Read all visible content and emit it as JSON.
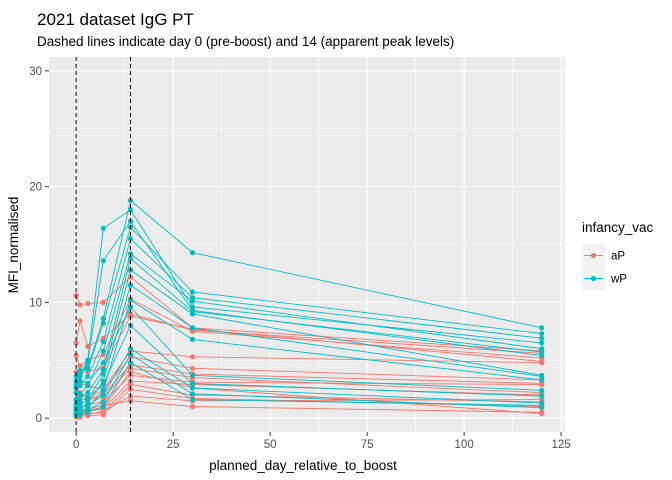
{
  "chart_data": {
    "type": "line",
    "title": "2021 dataset IgG PT",
    "subtitle": "Dashed lines indicate day 0 (pre-boost) and 14 (apparent peak levels)",
    "xlabel": "planned_day_relative_to_boost",
    "ylabel": "MFI_normalised",
    "xlim": [
      -7,
      126
    ],
    "ylim": [
      -1.2,
      31.2
    ],
    "x_ticks": [
      0,
      25,
      50,
      75,
      100,
      125
    ],
    "x_tick_labels": [
      "0",
      "25",
      "50",
      "75",
      "100",
      "125"
    ],
    "y_ticks": [
      0,
      10,
      20,
      30
    ],
    "y_tick_labels": [
      "0",
      "10",
      "20",
      "30"
    ],
    "vlines": [
      0,
      14
    ],
    "grid": true,
    "legend_title": "infancy_vac",
    "legend_position": "right",
    "colors": {
      "aP": "#F8766D",
      "wP": "#00BFC4"
    },
    "series": [
      {
        "name": "aP",
        "subjects": [
          [
            [
              0,
              10.6
            ],
            [
              1,
              9.8
            ],
            [
              3,
              9.9
            ],
            [
              7,
              10.0
            ],
            [
              14,
              12.2
            ],
            [
              30,
              7.8
            ],
            [
              120,
              5.8
            ]
          ],
          [
            [
              0,
              6.5
            ],
            [
              1,
              8.4
            ],
            [
              3,
              6.2
            ],
            [
              7,
              6.9
            ],
            [
              14,
              9.0
            ],
            [
              30,
              7.6
            ],
            [
              120,
              5.6
            ]
          ],
          [
            [
              0,
              5.4
            ],
            [
              1,
              4.5
            ],
            [
              3,
              5.0
            ],
            [
              7,
              5.5
            ],
            [
              14,
              10.3
            ],
            [
              30,
              7.5
            ],
            [
              120,
              5.2
            ]
          ],
          [
            [
              0,
              4.0
            ],
            [
              1,
              3.9
            ],
            [
              3,
              4.0
            ],
            [
              7,
              4.3
            ],
            [
              14,
              8.8
            ],
            [
              30,
              7.7
            ],
            [
              120,
              4.9
            ]
          ],
          [
            [
              0,
              3.2
            ],
            [
              1,
              3.0
            ],
            [
              3,
              2.8
            ],
            [
              7,
              2.5
            ],
            [
              14,
              5.8
            ],
            [
              30,
              5.3
            ],
            [
              120,
              4.8
            ]
          ],
          [
            [
              0,
              2.6
            ],
            [
              1,
              2.2
            ],
            [
              3,
              1.8
            ],
            [
              7,
              2.4
            ],
            [
              14,
              5.3
            ],
            [
              30,
              4.3
            ],
            [
              120,
              3.3
            ]
          ],
          [
            [
              0,
              2.2
            ],
            [
              1,
              2.0
            ],
            [
              3,
              1.7
            ],
            [
              7,
              2.0
            ],
            [
              14,
              4.6
            ],
            [
              30,
              3.8
            ],
            [
              120,
              3.0
            ]
          ],
          [
            [
              0,
              1.5
            ],
            [
              1,
              1.6
            ],
            [
              3,
              1.6
            ],
            [
              7,
              1.8
            ],
            [
              14,
              4.3
            ],
            [
              30,
              3.5
            ],
            [
              120,
              2.2
            ]
          ],
          [
            [
              0,
              0.8
            ],
            [
              1,
              0.9
            ],
            [
              3,
              1.2
            ],
            [
              7,
              1.4
            ],
            [
              14,
              3.7
            ],
            [
              30,
              3.1
            ],
            [
              120,
              2.9
            ]
          ],
          [
            [
              0,
              0.5
            ],
            [
              1,
              0.4
            ],
            [
              3,
              0.6
            ],
            [
              7,
              0.8
            ],
            [
              14,
              3.2
            ],
            [
              30,
              2.9
            ],
            [
              120,
              2.0
            ]
          ],
          [
            [
              0,
              0.2
            ],
            [
              1,
              0.3
            ],
            [
              3,
              0.4
            ],
            [
              7,
              0.5
            ],
            [
              14,
              2.9
            ],
            [
              30,
              2.0
            ],
            [
              120,
              1.4
            ]
          ],
          [
            [
              0,
              0.1
            ],
            [
              1,
              0.2
            ],
            [
              3,
              0.2
            ],
            [
              7,
              0.3
            ],
            [
              14,
              2.5
            ],
            [
              30,
              1.7
            ],
            [
              120,
              1.0
            ]
          ],
          [
            [
              0,
              0.3
            ],
            [
              1,
              0.1
            ],
            [
              3,
              0.3
            ],
            [
              7,
              0.6
            ],
            [
              14,
              1.9
            ],
            [
              30,
              1.5
            ],
            [
              120,
              1.6
            ]
          ],
          [
            [
              0,
              0.6
            ],
            [
              1,
              0.5
            ],
            [
              3,
              0.8
            ],
            [
              7,
              1.1
            ],
            [
              14,
              1.5
            ],
            [
              30,
              1.0
            ],
            [
              120,
              0.5
            ]
          ],
          [
            [
              0,
              0.4
            ],
            [
              1,
              0.6
            ],
            [
              3,
              0.7
            ],
            [
              7,
              0.9
            ],
            [
              14,
              4.0
            ],
            [
              30,
              2.6
            ],
            [
              120,
              0.4
            ]
          ]
        ]
      },
      {
        "name": "wP",
        "subjects": [
          [
            [
              0,
              2.6
            ],
            [
              1,
              3.8
            ],
            [
              3,
              5.0
            ],
            [
              7,
              16.4
            ],
            [
              14,
              18.0
            ],
            [
              30,
              9.6
            ],
            [
              120,
              6.5
            ]
          ],
          [
            [
              0,
              2.8
            ],
            [
              1,
              3.6
            ],
            [
              3,
              4.8
            ],
            [
              7,
              13.6
            ],
            [
              14,
              17.0
            ],
            [
              30,
              9.3
            ],
            [
              120,
              5.4
            ]
          ],
          [
            [
              0,
              3.2
            ],
            [
              1,
              4.0
            ],
            [
              3,
              4.4
            ],
            [
              7,
              8.6
            ],
            [
              14,
              18.8
            ],
            [
              30,
              14.3
            ],
            [
              120,
              7.8
            ]
          ],
          [
            [
              0,
              3.6
            ],
            [
              1,
              4.1
            ],
            [
              3,
              4.2
            ],
            [
              7,
              8.2
            ],
            [
              14,
              16.5
            ],
            [
              30,
              10.9
            ],
            [
              120,
              7.3
            ]
          ],
          [
            [
              0,
              2.2
            ],
            [
              1,
              2.8
            ],
            [
              3,
              3.6
            ],
            [
              7,
              6.6
            ],
            [
              14,
              15.5
            ],
            [
              30,
              10.4
            ],
            [
              120,
              6.9
            ]
          ],
          [
            [
              0,
              1.6
            ],
            [
              1,
              2.1
            ],
            [
              3,
              2.8
            ],
            [
              7,
              5.8
            ],
            [
              14,
              14.2
            ],
            [
              30,
              10.1
            ],
            [
              120,
              6.0
            ]
          ],
          [
            [
              0,
              1.2
            ],
            [
              1,
              1.8
            ],
            [
              3,
              2.2
            ],
            [
              7,
              4.2
            ],
            [
              14,
              13.8
            ],
            [
              30,
              9.2
            ],
            [
              120,
              5.7
            ]
          ],
          [
            [
              0,
              0.9
            ],
            [
              1,
              1.2
            ],
            [
              3,
              1.6
            ],
            [
              7,
              3.8
            ],
            [
              14,
              12.8
            ],
            [
              30,
              9.0
            ],
            [
              120,
              3.7
            ]
          ],
          [
            [
              0,
              0.6
            ],
            [
              1,
              0.8
            ],
            [
              3,
              1.3
            ],
            [
              7,
              3.2
            ],
            [
              14,
              11.5
            ],
            [
              30,
              7.8
            ],
            [
              120,
              3.6
            ]
          ],
          [
            [
              0,
              0.4
            ],
            [
              1,
              0.6
            ],
            [
              3,
              0.9
            ],
            [
              7,
              2.4
            ],
            [
              14,
              10.2
            ],
            [
              30,
              6.8
            ],
            [
              120,
              3.3
            ]
          ],
          [
            [
              0,
              2.9
            ],
            [
              1,
              3.2
            ],
            [
              3,
              3.0
            ],
            [
              7,
              4.8
            ],
            [
              14,
              9.6
            ],
            [
              30,
              3.7
            ],
            [
              120,
              2.4
            ]
          ],
          [
            [
              0,
              1.0
            ],
            [
              1,
              1.4
            ],
            [
              3,
              1.8
            ],
            [
              7,
              2.9
            ],
            [
              14,
              8.0
            ],
            [
              30,
              3.0
            ],
            [
              120,
              1.9
            ]
          ],
          [
            [
              0,
              0.7
            ],
            [
              1,
              0.9
            ],
            [
              3,
              1.1
            ],
            [
              7,
              2.0
            ],
            [
              14,
              6.0
            ],
            [
              30,
              2.6
            ],
            [
              120,
              1.3
            ]
          ],
          [
            [
              0,
              0.3
            ],
            [
              1,
              0.5
            ],
            [
              3,
              0.7
            ],
            [
              7,
              1.4
            ],
            [
              14,
              5.5
            ],
            [
              30,
              2.1
            ],
            [
              120,
              0.9
            ]
          ],
          [
            [
              0,
              0.2
            ],
            [
              1,
              0.3
            ],
            [
              3,
              0.5
            ],
            [
              7,
              1.0
            ],
            [
              14,
              4.8
            ],
            [
              30,
              1.6
            ],
            [
              120,
              1.1
            ]
          ]
        ]
      }
    ]
  }
}
